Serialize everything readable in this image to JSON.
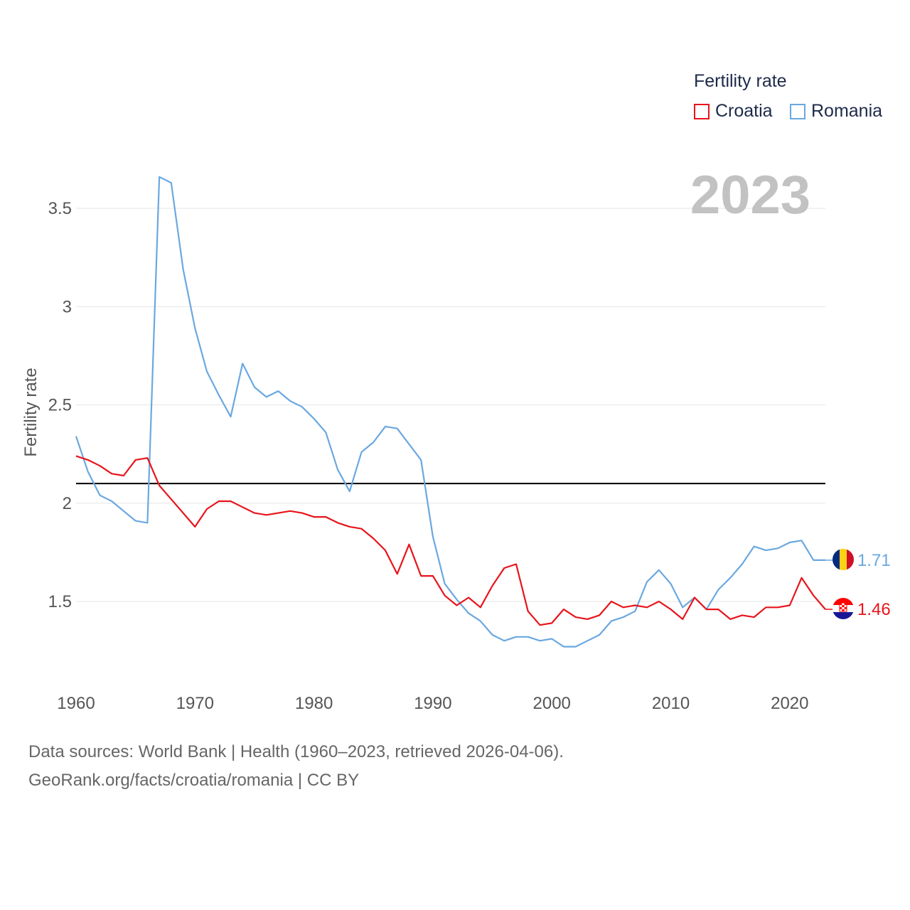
{
  "legend": {
    "title": "Fertility rate",
    "items": [
      {
        "name": "Croatia",
        "color": "#e8141c"
      },
      {
        "name": "Romania",
        "color": "#6aa8e0"
      }
    ]
  },
  "footer": {
    "line1": "Data sources: World Bank | Health (1960–2023, retrieved 2026-04-06).",
    "line2": "GeoRank.org/facts/croatia/romania | CC BY"
  },
  "chart_data": {
    "type": "line",
    "year_label": "2023",
    "ylabel": "Fertility rate",
    "xlabel": "",
    "xlim": [
      1960,
      2023
    ],
    "ylim": [
      1.1,
      3.75
    ],
    "x_ticks": [
      1960,
      1970,
      1980,
      1990,
      2000,
      2010,
      2020
    ],
    "x_tick_labels": [
      "1960",
      "1970",
      "1980",
      "1990",
      "2000",
      "2010",
      "2020"
    ],
    "y_ticks": [
      1.5,
      2,
      2.5,
      3,
      3.5
    ],
    "y_tick_labels": [
      "1.5",
      "2",
      "2.5",
      "3",
      "3.5"
    ],
    "reference_line": {
      "value": 2.1,
      "color": "#000000"
    },
    "x": [
      1960,
      1961,
      1962,
      1963,
      1964,
      1965,
      1966,
      1967,
      1968,
      1969,
      1970,
      1971,
      1972,
      1973,
      1974,
      1975,
      1976,
      1977,
      1978,
      1979,
      1980,
      1981,
      1982,
      1983,
      1984,
      1985,
      1986,
      1987,
      1988,
      1989,
      1990,
      1991,
      1992,
      1993,
      1994,
      1995,
      1996,
      1997,
      1998,
      1999,
      2000,
      2001,
      2002,
      2003,
      2004,
      2005,
      2006,
      2007,
      2008,
      2009,
      2010,
      2011,
      2012,
      2013,
      2014,
      2015,
      2016,
      2017,
      2018,
      2019,
      2020,
      2021,
      2022,
      2023
    ],
    "series": [
      {
        "name": "Croatia",
        "color": "#e8141c",
        "end_label": "1.46",
        "values": [
          2.24,
          2.22,
          2.19,
          2.15,
          2.14,
          2.22,
          2.23,
          2.09,
          2.02,
          1.95,
          1.88,
          1.97,
          2.01,
          2.01,
          1.98,
          1.95,
          1.94,
          1.95,
          1.96,
          1.95,
          1.93,
          1.93,
          1.9,
          1.88,
          1.87,
          1.82,
          1.76,
          1.64,
          1.79,
          1.63,
          1.63,
          1.53,
          1.48,
          1.52,
          1.47,
          1.58,
          1.67,
          1.69,
          1.45,
          1.38,
          1.39,
          1.46,
          1.42,
          1.41,
          1.43,
          1.5,
          1.47,
          1.48,
          1.47,
          1.5,
          1.46,
          1.41,
          1.52,
          1.46,
          1.46,
          1.41,
          1.43,
          1.42,
          1.47,
          1.47,
          1.48,
          1.62,
          1.53,
          1.46
        ]
      },
      {
        "name": "Romania",
        "color": "#6aa8e0",
        "end_label": "1.71",
        "values": [
          2.34,
          2.16,
          2.04,
          2.01,
          1.96,
          1.91,
          1.9,
          3.66,
          3.63,
          3.19,
          2.89,
          2.67,
          2.55,
          2.44,
          2.71,
          2.59,
          2.54,
          2.57,
          2.52,
          2.49,
          2.43,
          2.36,
          2.17,
          2.06,
          2.26,
          2.31,
          2.39,
          2.38,
          2.3,
          2.22,
          1.83,
          1.59,
          1.51,
          1.44,
          1.4,
          1.33,
          1.3,
          1.32,
          1.32,
          1.3,
          1.31,
          1.27,
          1.27,
          1.3,
          1.33,
          1.4,
          1.42,
          1.45,
          1.6,
          1.66,
          1.59,
          1.47,
          1.52,
          1.46,
          1.56,
          1.62,
          1.69,
          1.78,
          1.76,
          1.77,
          1.8,
          1.81,
          1.71,
          1.71
        ]
      }
    ]
  }
}
